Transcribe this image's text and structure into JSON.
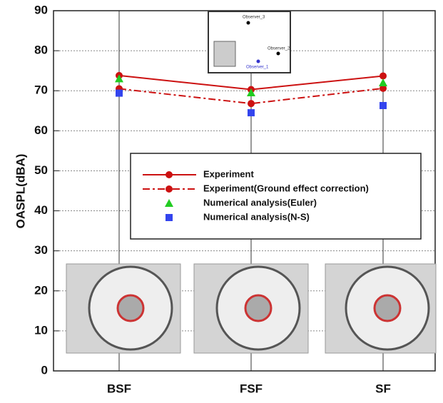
{
  "chart_data": {
    "type": "line",
    "ylabel": "OASPL(dBA)",
    "categories": [
      "BSF",
      "FSF",
      "SF"
    ],
    "ylim": [
      0,
      90
    ],
    "yticks": [
      0,
      10,
      20,
      30,
      40,
      50,
      60,
      70,
      80,
      90
    ],
    "grid": true,
    "series": [
      {
        "name": "Experiment",
        "color": "#cc1111",
        "style": "solid",
        "marker": "circle",
        "values": [
          73.8,
          70.3,
          73.7
        ]
      },
      {
        "name": "Experiment(Ground effect correction)",
        "color": "#cc1111",
        "style": "dashdot",
        "marker": "circle",
        "values": [
          70.5,
          66.8,
          70.6
        ]
      },
      {
        "name": "Numerical analysis(Euler)",
        "color": "#22cc22",
        "style": "none",
        "marker": "triangle",
        "values": [
          73.0,
          69.5,
          72.0
        ]
      },
      {
        "name": "Numerical analysis(N-S)",
        "color": "#3344ee",
        "style": "none",
        "marker": "square",
        "values": [
          69.4,
          64.5,
          66.3
        ]
      }
    ],
    "inset_labels": [
      "Observer_3",
      "Observer_2",
      "Observer_1"
    ]
  }
}
